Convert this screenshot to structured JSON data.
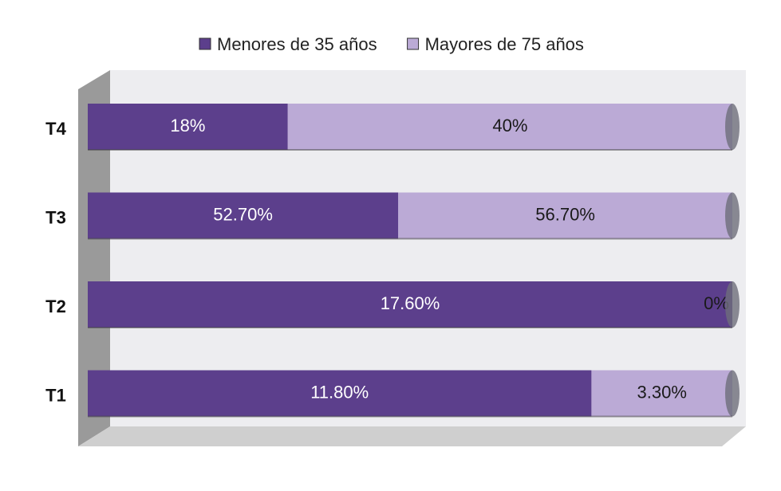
{
  "chart_data": {
    "type": "bar",
    "orientation": "horizontal",
    "stacking": "percent",
    "categories": [
      "T4",
      "T3",
      "T2",
      "T1"
    ],
    "series": [
      {
        "name": "Menores de 35 años",
        "color": "#5c3f8c",
        "values": [
          18,
          52.7,
          17.6,
          11.8
        ],
        "value_labels": [
          "18%",
          "52.70%",
          "17.60%",
          "11.80%"
        ]
      },
      {
        "name": "Mayores de 75 años",
        "color": "#bbaad6",
        "values": [
          40,
          56.7,
          0,
          3.3
        ],
        "value_labels": [
          "40%",
          "56.70%",
          "0%",
          "3.30%"
        ]
      }
    ],
    "legend": "top"
  }
}
